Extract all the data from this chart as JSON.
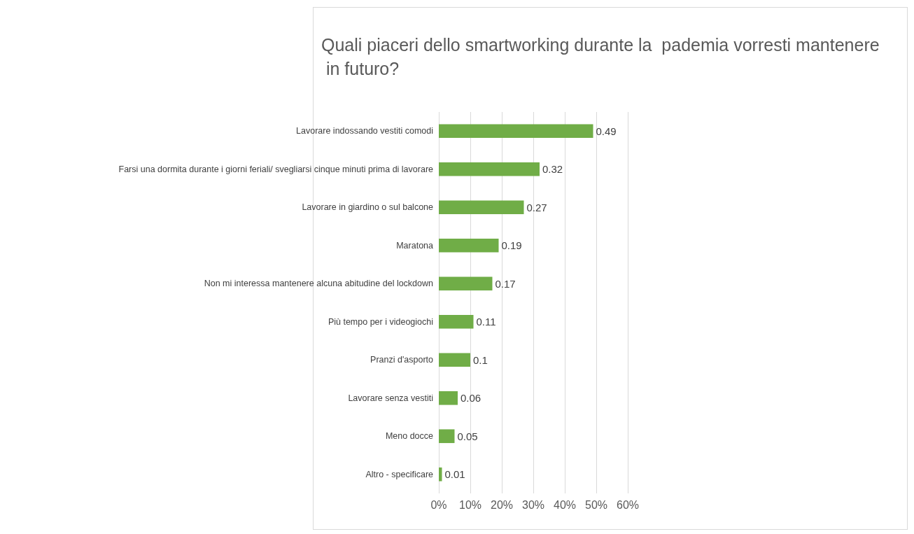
{
  "chart_data": {
    "type": "bar",
    "orientation": "horizontal",
    "title": "Quali piaceri dello smartworking durante la  pademia vorresti mantenere in futuro?",
    "categories": [
      "Lavorare indossando vestiti comodi",
      "Farsi una dormita durante i giorni feriali/ svegliarsi cinque minuti prima di lavorare",
      "Lavorare in giardino o sul balcone",
      "Maratona",
      "Non mi interessa mantenere alcuna abitudine del lockdown",
      "Più tempo per i videogiochi",
      "Pranzi d'asporto",
      "Lavorare senza vestiti",
      "Meno docce",
      "Altro - specificare"
    ],
    "values": [
      0.49,
      0.32,
      0.27,
      0.19,
      0.17,
      0.11,
      0.1,
      0.06,
      0.05,
      0.01
    ],
    "color": "#70ad47",
    "data_labels": true,
    "grid": "x",
    "xlim": [
      0,
      0.6
    ],
    "xticks": [
      {
        "value": 0,
        "label": "0%"
      },
      {
        "value": 0.1,
        "label": "10%"
      },
      {
        "value": 0.2,
        "label": "20%"
      },
      {
        "value": 0.3,
        "label": "30%"
      },
      {
        "value": 0.4,
        "label": "40%"
      },
      {
        "value": 0.5,
        "label": "50%"
      },
      {
        "value": 0.6,
        "label": "60%"
      }
    ]
  }
}
